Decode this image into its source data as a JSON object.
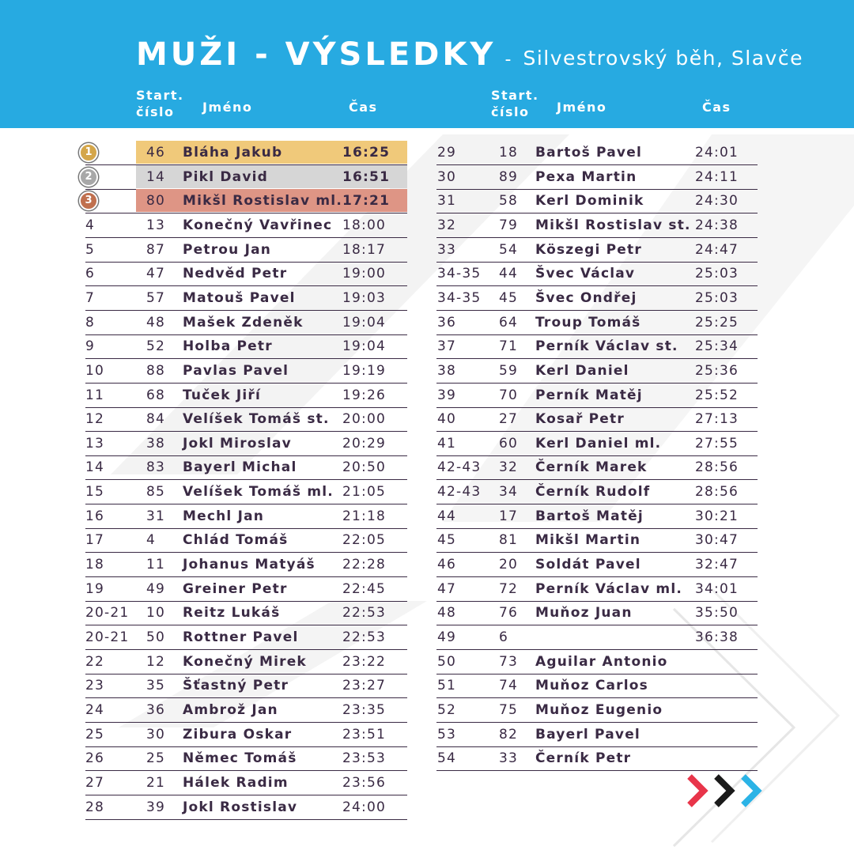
{
  "title": {
    "main": "MUŽI - VÝSLEDKY",
    "separator": "-",
    "subtitle": "Silvestrovský běh, Slavče"
  },
  "columns": {
    "start_line1": "Start.",
    "start_line2": "číslo",
    "name": "Jméno",
    "time": "Čas"
  },
  "colors": {
    "header": "#27aae1",
    "gold": "#f0c97a",
    "silver": "#d6d6d6",
    "bronze": "#de9585",
    "text": "#3a2a44",
    "arrow_red": "#e8354a",
    "arrow_black": "#1a1a1a",
    "arrow_blue": "#2bb3e6"
  },
  "medals": [
    {
      "place": "1",
      "color": "#d4a64a"
    },
    {
      "place": "2",
      "color": "#a8a8a8"
    },
    {
      "place": "3",
      "color": "#c0704e"
    }
  ],
  "left_rows": [
    {
      "place": "",
      "start": "46",
      "name": "Bláha Jakub",
      "time": "16:25",
      "highlight": "gold"
    },
    {
      "place": "",
      "start": "14",
      "name": "Pikl David",
      "time": "16:51",
      "highlight": "silver"
    },
    {
      "place": "",
      "start": "80",
      "name": "Mikšl Rostislav ml.",
      "time": "17:21",
      "highlight": "bronze"
    },
    {
      "place": "4",
      "start": "13",
      "name": "Konečný Vavřinec",
      "time": "18:00"
    },
    {
      "place": "5",
      "start": "87",
      "name": "Petrou Jan",
      "time": "18:17"
    },
    {
      "place": "6",
      "start": "47",
      "name": "Nedvěd Petr",
      "time": "19:00"
    },
    {
      "place": "7",
      "start": "57",
      "name": "Matouš Pavel",
      "time": "19:03"
    },
    {
      "place": "8",
      "start": "48",
      "name": "Mašek Zdeněk",
      "time": "19:04"
    },
    {
      "place": "9",
      "start": "52",
      "name": "Holba Petr",
      "time": "19:04"
    },
    {
      "place": "10",
      "start": "88",
      "name": "Pavlas Pavel",
      "time": "19:19"
    },
    {
      "place": "11",
      "start": "68",
      "name": "Tuček Jiří",
      "time": "19:26"
    },
    {
      "place": "12",
      "start": "84",
      "name": "Velíšek Tomáš st.",
      "time": "20:00"
    },
    {
      "place": "13",
      "start": "38",
      "name": "Jokl Miroslav",
      "time": "20:29"
    },
    {
      "place": "14",
      "start": "83",
      "name": "Bayerl Michal",
      "time": "20:50"
    },
    {
      "place": "15",
      "start": "85",
      "name": "Velíšek Tomáš ml.",
      "time": "21:05"
    },
    {
      "place": "16",
      "start": "31",
      "name": "Mechl Jan",
      "time": "21:18"
    },
    {
      "place": "17",
      "start": "4",
      "name": "Chlád Tomáš",
      "time": "22:05"
    },
    {
      "place": "18",
      "start": "11",
      "name": "Johanus Matyáš",
      "time": "22:28"
    },
    {
      "place": "19",
      "start": "49",
      "name": "Greiner Petr",
      "time": "22:45"
    },
    {
      "place": "20-21",
      "start": "10",
      "name": "Reitz Lukáš",
      "time": "22:53"
    },
    {
      "place": "20-21",
      "start": "50",
      "name": "Rottner Pavel",
      "time": "22:53"
    },
    {
      "place": "22",
      "start": "12",
      "name": "Konečný Mirek",
      "time": "23:22"
    },
    {
      "place": "23",
      "start": "35",
      "name": "Šťastný Petr",
      "time": "23:27"
    },
    {
      "place": "24",
      "start": "36",
      "name": "Ambrož Jan",
      "time": "23:35"
    },
    {
      "place": "25",
      "start": "30",
      "name": "Zibura Oskar",
      "time": "23:51"
    },
    {
      "place": "26",
      "start": "25",
      "name": "Němec Tomáš",
      "time": "23:53"
    },
    {
      "place": "27",
      "start": "21",
      "name": "Hálek Radim",
      "time": "23:56"
    },
    {
      "place": "28",
      "start": "39",
      "name": "Jokl Rostislav",
      "time": "24:00"
    }
  ],
  "right_rows": [
    {
      "place": "29",
      "start": "18",
      "name": "Bartoš Pavel",
      "time": "24:01"
    },
    {
      "place": "30",
      "start": "89",
      "name": "Pexa Martin",
      "time": "24:11"
    },
    {
      "place": "31",
      "start": "58",
      "name": "Kerl Dominik",
      "time": "24:30"
    },
    {
      "place": "32",
      "start": "79",
      "name": "Mikšl Rostislav st.",
      "time": "24:38"
    },
    {
      "place": "33",
      "start": "54",
      "name": "Köszegi Petr",
      "time": "24:47"
    },
    {
      "place": "34-35",
      "start": "44",
      "name": "Švec Václav",
      "time": "25:03"
    },
    {
      "place": "34-35",
      "start": "45",
      "name": "Švec Ondřej",
      "time": "25:03"
    },
    {
      "place": "36",
      "start": "64",
      "name": "Troup Tomáš",
      "time": "25:25"
    },
    {
      "place": "37",
      "start": "71",
      "name": "Perník Václav st.",
      "time": "25:34"
    },
    {
      "place": "38",
      "start": "59",
      "name": "Kerl Daniel",
      "time": "25:36"
    },
    {
      "place": "39",
      "start": "70",
      "name": "Perník Matěj",
      "time": "25:52"
    },
    {
      "place": "40",
      "start": "27",
      "name": "Kosař Petr",
      "time": "27:13"
    },
    {
      "place": "41",
      "start": "60",
      "name": "Kerl Daniel ml.",
      "time": "27:55"
    },
    {
      "place": "42-43",
      "start": "32",
      "name": "Černík Marek",
      "time": "28:56"
    },
    {
      "place": "42-43",
      "start": "34",
      "name": "Černík Rudolf",
      "time": "28:56"
    },
    {
      "place": "44",
      "start": "17",
      "name": "Bartoš Matěj",
      "time": "30:21"
    },
    {
      "place": "45",
      "start": "81",
      "name": "Mikšl Martin",
      "time": "30:47"
    },
    {
      "place": "46",
      "start": "20",
      "name": "Soldát Pavel",
      "time": "32:47"
    },
    {
      "place": "47",
      "start": "72",
      "name": "Perník Václav ml.",
      "time": "34:01"
    },
    {
      "place": "48",
      "start": "76",
      "name": "Muňoz Juan",
      "time": "35:50"
    },
    {
      "place": "49",
      "start": "6",
      "name": "",
      "time": "36:38"
    },
    {
      "place": "50",
      "start": "73",
      "name": "Aguilar Antonio",
      "time": ""
    },
    {
      "place": "51",
      "start": "74",
      "name": "Muňoz Carlos",
      "time": ""
    },
    {
      "place": "52",
      "start": "75",
      "name": "Muňoz Eugenio",
      "time": ""
    },
    {
      "place": "53",
      "start": "82",
      "name": "Bayerl Pavel",
      "time": ""
    },
    {
      "place": "54",
      "start": "33",
      "name": "Černík Petr",
      "time": ""
    }
  ]
}
